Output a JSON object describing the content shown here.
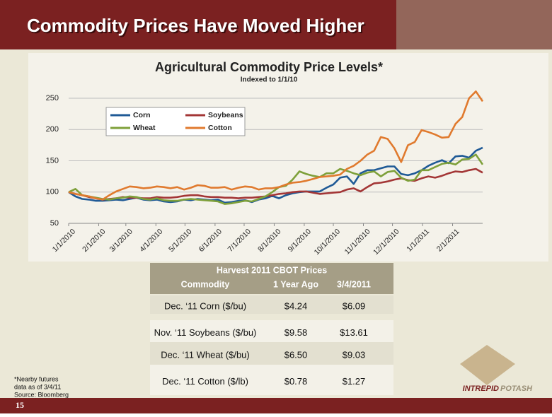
{
  "slide_title": "Commodity Prices Have Moved Higher",
  "chart_data": {
    "type": "line",
    "title": "Agricultural Commodity Price Levels*",
    "subtitle": "Indexed to 1/1/10",
    "x": [
      "2010-01-01",
      "2010-01-08",
      "2010-01-15",
      "2010-01-22",
      "2010-01-29",
      "2010-02-05",
      "2010-02-12",
      "2010-02-19",
      "2010-02-26",
      "2010-03-05",
      "2010-03-12",
      "2010-03-19",
      "2010-03-26",
      "2010-04-02",
      "2010-04-09",
      "2010-04-16",
      "2010-04-23",
      "2010-04-30",
      "2010-05-07",
      "2010-05-14",
      "2010-05-21",
      "2010-05-28",
      "2010-06-04",
      "2010-06-11",
      "2010-06-18",
      "2010-06-25",
      "2010-07-02",
      "2010-07-09",
      "2010-07-16",
      "2010-07-23",
      "2010-07-30",
      "2010-08-06",
      "2010-08-13",
      "2010-08-20",
      "2010-08-27",
      "2010-09-03",
      "2010-09-10",
      "2010-09-17",
      "2010-09-24",
      "2010-10-01",
      "2010-10-08",
      "2010-10-15",
      "2010-10-22",
      "2010-10-29",
      "2010-11-05",
      "2010-11-12",
      "2010-11-19",
      "2010-11-26",
      "2010-12-03",
      "2010-12-10",
      "2010-12-17",
      "2010-12-24",
      "2010-12-31",
      "2011-01-07",
      "2011-01-14",
      "2011-01-21",
      "2011-01-28",
      "2011-02-04",
      "2011-02-11",
      "2011-02-18",
      "2011-02-25",
      "2011-03-04"
    ],
    "xlim": [
      "2010-01-01",
      "2011-03-04"
    ],
    "xticks": [
      {
        "value": "2010-01-01",
        "label": "1/1/2010"
      },
      {
        "value": "2010-02-01",
        "label": "2/1/2010"
      },
      {
        "value": "2010-03-01",
        "label": "3/1/2010"
      },
      {
        "value": "2010-04-01",
        "label": "4/1/2010"
      },
      {
        "value": "2010-05-01",
        "label": "5/1/2010"
      },
      {
        "value": "2010-06-01",
        "label": "6/1/2010"
      },
      {
        "value": "2010-07-01",
        "label": "7/1/2010"
      },
      {
        "value": "2010-08-01",
        "label": "8/1/2010"
      },
      {
        "value": "2010-09-01",
        "label": "9/1/2010"
      },
      {
        "value": "2010-10-01",
        "label": "10/1/2010"
      },
      {
        "value": "2010-11-01",
        "label": "11/1/2010"
      },
      {
        "value": "2010-12-01",
        "label": "12/1/2010"
      },
      {
        "value": "2011-01-01",
        "label": "1/1/2011"
      },
      {
        "value": "2011-02-01",
        "label": "2/1/2011"
      }
    ],
    "ylim": [
      50,
      270
    ],
    "yticks": [
      50,
      100,
      150,
      200,
      250
    ],
    "grid": true,
    "legend": "upper left",
    "series": [
      {
        "name": "Corn",
        "color": "#1f5a96",
        "values": [
          100,
          93,
          89,
          88,
          86,
          86,
          87,
          88,
          87,
          89,
          91,
          88,
          87,
          88,
          85,
          84,
          85,
          88,
          87,
          89,
          88,
          87,
          88,
          83,
          84,
          86,
          87,
          84,
          88,
          90,
          94,
          90,
          95,
          98,
          100,
          101,
          101,
          101,
          107,
          112,
          123,
          125,
          113,
          130,
          135,
          135,
          138,
          141,
          141,
          129,
          127,
          130,
          135,
          142,
          147,
          151,
          146,
          157,
          158,
          155,
          166,
          171
        ]
      },
      {
        "name": "Soybeans",
        "color": "#a33636",
        "values": [
          100,
          97,
          95,
          92,
          90,
          88,
          89,
          90,
          92,
          91,
          91,
          90,
          90,
          92,
          91,
          91,
          92,
          94,
          95,
          95,
          93,
          92,
          92,
          91,
          91,
          90,
          91,
          91,
          92,
          93,
          95,
          97,
          98,
          100,
          101,
          101,
          99,
          97,
          98,
          99,
          100,
          104,
          106,
          101,
          108,
          114,
          115,
          117,
          120,
          122,
          119,
          118,
          122,
          125,
          123,
          126,
          130,
          133,
          132,
          135,
          137,
          131
        ]
      },
      {
        "name": "Wheat",
        "color": "#7ea03a",
        "values": [
          100,
          105,
          95,
          93,
          91,
          89,
          88,
          90,
          91,
          93,
          92,
          89,
          88,
          90,
          87,
          86,
          86,
          88,
          89,
          88,
          87,
          86,
          85,
          81,
          82,
          84,
          86,
          85,
          89,
          93,
          100,
          108,
          110,
          120,
          133,
          129,
          126,
          124,
          130,
          130,
          137,
          134,
          130,
          127,
          131,
          133,
          125,
          132,
          134,
          123,
          118,
          120,
          135,
          135,
          140,
          145,
          147,
          144,
          152,
          153,
          160,
          144
        ]
      },
      {
        "name": "Cotton",
        "color": "#e07a2e",
        "values": [
          100,
          97,
          95,
          93,
          90,
          88,
          95,
          101,
          105,
          109,
          108,
          106,
          107,
          109,
          108,
          106,
          108,
          104,
          107,
          111,
          110,
          107,
          107,
          108,
          104,
          107,
          109,
          108,
          104,
          106,
          106,
          108,
          112,
          115,
          116,
          118,
          121,
          124,
          125,
          126,
          128,
          137,
          142,
          150,
          160,
          166,
          188,
          185,
          170,
          148,
          175,
          180,
          199,
          196,
          192,
          187,
          188,
          209,
          220,
          250,
          261,
          245
        ]
      }
    ]
  },
  "table": {
    "title": "Harvest 2011 CBOT Prices",
    "columns": [
      "Commodity",
      "1 Year Ago",
      "3/4/2011"
    ],
    "rows": [
      [
        "Dec. ‘11 Corn ($/bu)",
        "$4.24",
        "$6.09"
      ],
      [
        "Nov. ‘11 Soybeans ($/bu)",
        "$9.58",
        "$13.61"
      ],
      [
        "Dec. ‘11 Wheat ($/bu)",
        "$6.50",
        "$9.03"
      ],
      [
        "Dec. ‘11 Cotton ($/lb)",
        "$0.78",
        "$1.27"
      ]
    ]
  },
  "footnote": [
    "*Nearby futures",
    "data as of 3/4/11",
    "Source: Bloomberg"
  ],
  "logo": [
    "INTREPID",
    "POTASH"
  ],
  "page_number": "15"
}
